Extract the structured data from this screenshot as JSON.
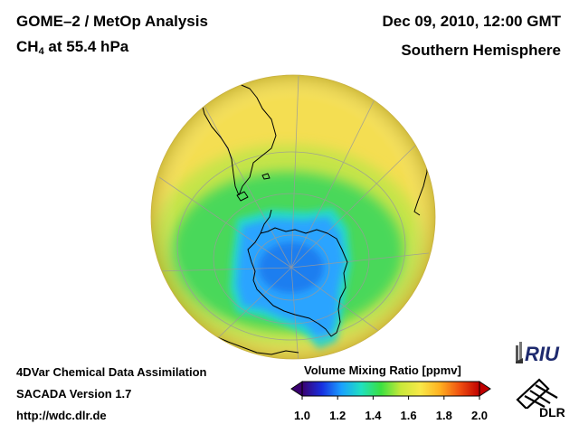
{
  "header": {
    "title": "GOME–2 / MetOp Analysis",
    "species_prefix": "CH",
    "species_subscript": "4",
    "species_suffix": " at 55.4 hPa",
    "datetime": "Dec 09, 2010, 12:00 GMT",
    "region": "Southern Hemisphere"
  },
  "footer": {
    "line1": "4DVar Chemical Data Assimilation",
    "line2": "SACADA Version 1.7",
    "url": "http://wdc.dlr.de"
  },
  "colorbar": {
    "title": "Volume Mixing Ratio [ppmv]",
    "min": 1.0,
    "max": 2.0,
    "tick_labels": [
      "1.0",
      "1.2",
      "1.4",
      "1.6",
      "1.8",
      "2.0"
    ],
    "tick_values": [
      1.0,
      1.2,
      1.4,
      1.6,
      1.8,
      2.0
    ],
    "colors": [
      "#3a0070",
      "#1830e0",
      "#1aa0ff",
      "#20e0c0",
      "#3ae040",
      "#c8e83a",
      "#f8e848",
      "#ffb020",
      "#f05010",
      "#c00000"
    ]
  },
  "field": {
    "polar_value_ppmv": 1.3,
    "collar_value_ppmv": 1.5,
    "midlat_value_ppmv": 1.7
  },
  "logos": {
    "riu": "RIU",
    "dlr": "DLR"
  },
  "icons": {
    "riu": "riu-logo-icon",
    "dlr": "dlr-logo-icon"
  }
}
